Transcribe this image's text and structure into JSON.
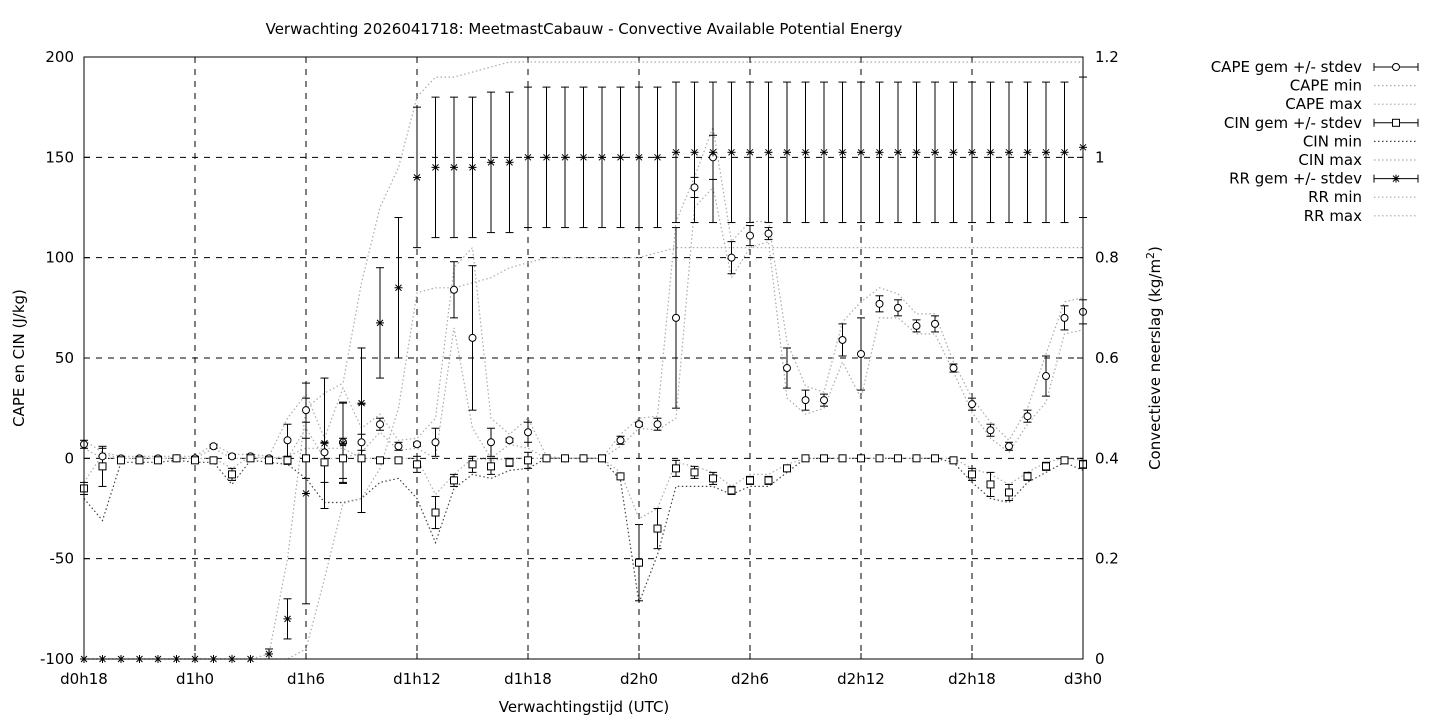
{
  "chart_data": {
    "type": "line",
    "title": "Verwachting 2026041718: MeetmastCabauw - Convective Available Potential Energy",
    "xlabel": "Verwachtingstijd (UTC)",
    "ylabel": "CAPE en CIN (J/kg)",
    "y2label": "Convectieve neerslag (kg/m",
    "y2label_sup": "2",
    "y2label_end": ")",
    "xlim": [
      18,
      72
    ],
    "ylim": [
      -100,
      200
    ],
    "y2lim": [
      0,
      1.2
    ],
    "x_ticks": [
      {
        "x": 18,
        "label": "d0h18"
      },
      {
        "x": 24,
        "label": "d1h0"
      },
      {
        "x": 30,
        "label": "d1h6"
      },
      {
        "x": 36,
        "label": "d1h12"
      },
      {
        "x": 42,
        "label": "d1h18"
      },
      {
        "x": 48,
        "label": "d2h0"
      },
      {
        "x": 54,
        "label": "d2h6"
      },
      {
        "x": 60,
        "label": "d2h12"
      },
      {
        "x": 66,
        "label": "d2h18"
      },
      {
        "x": 72,
        "label": "d3h0"
      }
    ],
    "y_ticks": [
      "-100",
      "-50",
      "0",
      "50",
      "100",
      "150",
      "200"
    ],
    "y2_ticks": [
      "0",
      "0.2",
      "0.4",
      "0.6",
      "0.8",
      "1",
      "1.2"
    ],
    "grid": true,
    "legend_position": "outside-top-right",
    "legend": [
      {
        "label": "CAPE gem +/- stdev",
        "style": "errorbar-circle"
      },
      {
        "label": "CAPE min",
        "style": "dotted-light"
      },
      {
        "label": "CAPE max",
        "style": "dotted-light"
      },
      {
        "label": "CIN gem +/- stdev",
        "style": "errorbar-square"
      },
      {
        "label": "CIN min",
        "style": "dotted-dark"
      },
      {
        "label": "CIN max",
        "style": "dotted-light"
      },
      {
        "label": "RR gem +/- stdev",
        "style": "errorbar-star"
      },
      {
        "label": "RR min",
        "style": "dotted-light"
      },
      {
        "label": "RR max",
        "style": "dotted-light"
      }
    ],
    "series": [
      {
        "name": "CAPE gem +/- stdev",
        "axis": "y1",
        "x": [
          18,
          19,
          20,
          21,
          22,
          23,
          24,
          25,
          26,
          27,
          28,
          29,
          30,
          31,
          32,
          33,
          34,
          35,
          36,
          37,
          38,
          39,
          40,
          41,
          42,
          43,
          44,
          45,
          46,
          47,
          48,
          49,
          50,
          51,
          52,
          53,
          54,
          55,
          56,
          57,
          58,
          59,
          60,
          61,
          62,
          63,
          64,
          65,
          66,
          67,
          68,
          69,
          70,
          71,
          72
        ],
        "mean": [
          7,
          1,
          0,
          0,
          0,
          0,
          0,
          6,
          1,
          1,
          0,
          9,
          24,
          3,
          8,
          8,
          17,
          6,
          7,
          8,
          84,
          60,
          8,
          9,
          13,
          0,
          0,
          0,
          0,
          9,
          17,
          17,
          70,
          135,
          150,
          100,
          111,
          112,
          45,
          29,
          29,
          59,
          52,
          77,
          75,
          66,
          67,
          45,
          27,
          14,
          6,
          21,
          41,
          70,
          73
        ],
        "stdev": [
          2,
          4,
          1,
          1,
          1,
          1,
          1,
          1,
          1,
          1,
          1,
          8,
          6,
          5,
          20,
          4,
          3,
          2,
          1,
          7,
          14,
          36,
          7,
          1,
          5,
          1,
          0,
          0,
          0,
          2,
          1,
          3,
          45,
          5,
          11,
          8,
          5,
          3,
          10,
          5,
          3,
          8,
          18,
          4,
          4,
          3,
          4,
          2,
          3,
          3,
          2,
          3,
          10,
          6,
          6
        ]
      },
      {
        "name": "CIN gem +/- stdev",
        "axis": "y1",
        "x": [
          18,
          19,
          20,
          21,
          22,
          23,
          24,
          25,
          26,
          27,
          28,
          29,
          30,
          31,
          32,
          33,
          34,
          35,
          36,
          37,
          38,
          39,
          40,
          41,
          42,
          43,
          44,
          45,
          46,
          47,
          48,
          49,
          50,
          51,
          52,
          53,
          54,
          55,
          56,
          57,
          58,
          59,
          60,
          61,
          62,
          63,
          64,
          65,
          66,
          67,
          68,
          69,
          70,
          71,
          72
        ],
        "mean": [
          -15,
          -4,
          -1,
          -1,
          -1,
          0,
          -1,
          -1,
          -8,
          0,
          -1,
          -1,
          0,
          -2,
          0,
          0,
          -1,
          -1,
          -3,
          -27,
          -11,
          -3,
          -4,
          -2,
          -1,
          0,
          0,
          0,
          0,
          -9,
          -52,
          -35,
          -5,
          -7,
          -10,
          -16,
          -11,
          -11,
          -5,
          0,
          0,
          0,
          0,
          0,
          0,
          0,
          0,
          -1,
          -8,
          -13,
          -17,
          -9,
          -4,
          -1,
          -3
        ],
        "stdev": [
          3,
          10,
          1,
          1,
          1,
          1,
          1,
          1,
          3,
          1,
          1,
          2,
          10,
          10,
          10,
          27,
          1,
          1,
          4,
          8,
          3,
          4,
          4,
          2,
          4,
          1,
          0,
          0,
          0,
          1,
          19,
          10,
          4,
          3,
          3,
          2,
          2,
          2,
          1,
          0,
          0,
          0,
          0,
          0,
          0,
          0,
          0,
          1,
          3,
          6,
          4,
          2,
          2,
          1,
          2
        ]
      },
      {
        "name": "RR gem +/- stdev",
        "axis": "y2",
        "x": [
          18,
          19,
          20,
          21,
          22,
          23,
          24,
          25,
          26,
          27,
          28,
          29,
          30,
          31,
          32,
          33,
          34,
          35,
          36,
          37,
          38,
          39,
          40,
          41,
          42,
          43,
          44,
          45,
          46,
          47,
          48,
          49,
          50,
          51,
          52,
          53,
          54,
          55,
          56,
          57,
          58,
          59,
          60,
          61,
          62,
          63,
          64,
          65,
          66,
          67,
          68,
          69,
          70,
          71,
          72
        ],
        "mean": [
          0,
          0,
          0,
          0,
          0,
          0,
          0,
          0,
          0,
          0,
          0.01,
          0.08,
          0.33,
          0.43,
          0.43,
          0.51,
          0.67,
          0.74,
          0.96,
          0.98,
          0.98,
          0.98,
          0.99,
          0.99,
          1,
          1,
          1,
          1,
          1,
          1,
          1,
          1,
          1.01,
          1.01,
          1.01,
          1.01,
          1.01,
          1.01,
          1.01,
          1.01,
          1.01,
          1.01,
          1.01,
          1.01,
          1.01,
          1.01,
          1.01,
          1.01,
          1.01,
          1.01,
          1.01,
          1.01,
          1.01,
          1.01,
          1.02
        ],
        "stdev": [
          0,
          0,
          0,
          0,
          0,
          0,
          0,
          0,
          0,
          0,
          0.01,
          0.04,
          0.22,
          0.13,
          0.08,
          0.11,
          0.11,
          0.14,
          0.14,
          0.14,
          0.14,
          0.14,
          0.14,
          0.14,
          0.14,
          0.14,
          0.14,
          0.14,
          0.14,
          0.14,
          0.14,
          0.14,
          0.14,
          0.14,
          0.14,
          0.14,
          0.14,
          0.14,
          0.14,
          0.14,
          0.14,
          0.14,
          0.14,
          0.14,
          0.14,
          0.14,
          0.14,
          0.14,
          0.14,
          0.14,
          0.14,
          0.14,
          0.14,
          0.14,
          0.14
        ]
      },
      {
        "name": "CAPE min",
        "axis": "y1",
        "x": [
          18,
          19,
          20,
          21,
          22,
          23,
          24,
          25,
          26,
          27,
          28,
          29,
          30,
          31,
          32,
          33,
          34,
          35,
          36,
          37,
          38,
          39,
          40,
          41,
          42,
          43,
          44,
          45,
          46,
          47,
          48,
          49,
          50,
          51,
          52,
          53,
          54,
          55,
          56,
          57,
          58,
          59,
          60,
          61,
          62,
          63,
          64,
          65,
          66,
          67,
          68,
          69,
          70,
          71,
          72
        ],
        "values": [
          5,
          0,
          0,
          0,
          0,
          0,
          0,
          5,
          0,
          0,
          0,
          0,
          15,
          0,
          0,
          3,
          13,
          4,
          5,
          0,
          65,
          15,
          0,
          7,
          5,
          0,
          0,
          0,
          0,
          6,
          15,
          14,
          20,
          125,
          135,
          90,
          105,
          108,
          30,
          22,
          25,
          48,
          30,
          70,
          70,
          62,
          62,
          43,
          23,
          10,
          3,
          17,
          28,
          62,
          64
        ]
      },
      {
        "name": "CAPE max",
        "axis": "y1",
        "x": [
          18,
          19,
          20,
          21,
          22,
          23,
          24,
          25,
          26,
          27,
          28,
          29,
          30,
          31,
          32,
          33,
          34,
          35,
          36,
          37,
          38,
          39,
          40,
          41,
          42,
          43,
          44,
          45,
          46,
          47,
          48,
          49,
          50,
          51,
          52,
          53,
          54,
          55,
          56,
          57,
          58,
          59,
          60,
          61,
          62,
          63,
          64,
          65,
          66,
          67,
          68,
          69,
          70,
          71,
          72
        ],
        "values": [
          9,
          3,
          1,
          1,
          1,
          1,
          1,
          7,
          2,
          2,
          1,
          20,
          32,
          10,
          35,
          15,
          22,
          9,
          10,
          20,
          95,
          105,
          20,
          12,
          20,
          1,
          0,
          0,
          0,
          12,
          20,
          21,
          118,
          140,
          165,
          108,
          118,
          118,
          58,
          36,
          33,
          68,
          78,
          85,
          82,
          72,
          72,
          48,
          30,
          18,
          9,
          25,
          52,
          78,
          80
        ]
      },
      {
        "name": "CIN min",
        "axis": "y1",
        "x": [
          18,
          19,
          20,
          21,
          22,
          23,
          24,
          25,
          26,
          27,
          28,
          29,
          30,
          31,
          32,
          33,
          34,
          35,
          36,
          37,
          38,
          39,
          40,
          41,
          42,
          43,
          44,
          45,
          46,
          47,
          48,
          49,
          50,
          51,
          52,
          53,
          54,
          55,
          56,
          57,
          58,
          59,
          60,
          61,
          62,
          63,
          64,
          65,
          66,
          67,
          68,
          69,
          70,
          71,
          72
        ],
        "values": [
          -20,
          -31,
          -2,
          -2,
          -2,
          -1,
          -2,
          -2,
          -13,
          -1,
          -2,
          -3,
          -10,
          -22,
          -22,
          -20,
          -12,
          -10,
          -20,
          -42,
          -15,
          -8,
          -10,
          -6,
          -5,
          0,
          0,
          0,
          0,
          -11,
          -72,
          -48,
          -14,
          -14,
          -14,
          -18,
          -14,
          -14,
          -7,
          0,
          0,
          0,
          0,
          0,
          0,
          0,
          0,
          -2,
          -12,
          -20,
          -22,
          -12,
          -7,
          -2,
          -6
        ]
      },
      {
        "name": "CIN max",
        "axis": "y1",
        "x": [
          18,
          19,
          20,
          21,
          22,
          23,
          24,
          25,
          26,
          27,
          28,
          29,
          30,
          31,
          32,
          33,
          34,
          35,
          36,
          37,
          38,
          39,
          40,
          41,
          42,
          43,
          44,
          45,
          46,
          47,
          48,
          49,
          50,
          51,
          52,
          53,
          54,
          55,
          56,
          57,
          58,
          59,
          60,
          61,
          62,
          63,
          64,
          65,
          66,
          67,
          68,
          69,
          70,
          71,
          72
        ],
        "values": [
          -12,
          2,
          0,
          0,
          0,
          0,
          0,
          0,
          -5,
          1,
          0,
          1,
          5,
          5,
          5,
          0,
          0,
          0,
          0,
          -18,
          -8,
          0,
          -1,
          0,
          0,
          0,
          0,
          0,
          0,
          -7,
          -30,
          -25,
          -2,
          -4,
          -7,
          -14,
          -8,
          -8,
          -3,
          0,
          0,
          0,
          0,
          0,
          0,
          0,
          0,
          0,
          -5,
          -8,
          -13,
          -7,
          -2,
          0,
          -1
        ]
      },
      {
        "name": "RR min",
        "axis": "y2",
        "x": [
          18,
          19,
          20,
          21,
          22,
          23,
          24,
          25,
          26,
          27,
          28,
          29,
          30,
          31,
          32,
          33,
          34,
          35,
          36,
          37,
          38,
          39,
          40,
          41,
          42,
          43,
          44,
          45,
          46,
          47,
          48,
          49,
          50,
          51,
          52,
          53,
          54,
          55,
          56,
          57,
          58,
          59,
          60,
          61,
          62,
          63,
          64,
          65,
          66,
          67,
          68,
          69,
          70,
          71,
          72
        ],
        "values": [
          0,
          0,
          0,
          0,
          0,
          0,
          0,
          0,
          0,
          0,
          0,
          0,
          0.02,
          0.16,
          0.31,
          0.32,
          0.38,
          0.5,
          0.73,
          0.74,
          0.74,
          0.75,
          0.76,
          0.78,
          0.79,
          0.8,
          0.8,
          0.8,
          0.8,
          0.8,
          0.8,
          0.81,
          0.82,
          0.82,
          0.82,
          0.82,
          0.82,
          0.82,
          0.82,
          0.82,
          0.82,
          0.82,
          0.82,
          0.82,
          0.82,
          0.82,
          0.82,
          0.82,
          0.82,
          0.82,
          0.82,
          0.82,
          0.82,
          0.82,
          0.82
        ]
      },
      {
        "name": "RR max",
        "axis": "y2",
        "x": [
          18,
          19,
          20,
          21,
          22,
          23,
          24,
          25,
          26,
          27,
          28,
          29,
          30,
          31,
          32,
          33,
          34,
          35,
          36,
          37,
          38,
          39,
          40,
          41,
          42,
          43,
          44,
          45,
          46,
          47,
          48,
          49,
          50,
          51,
          52,
          53,
          54,
          55,
          56,
          57,
          58,
          59,
          60,
          61,
          62,
          63,
          64,
          65,
          66,
          67,
          68,
          69,
          70,
          71,
          72
        ],
        "values": [
          0,
          0,
          0,
          0,
          0,
          0,
          0,
          0,
          0,
          0,
          0.01,
          0.2,
          0.5,
          0.53,
          0.55,
          0.75,
          0.9,
          0.98,
          1.12,
          1.16,
          1.16,
          1.17,
          1.18,
          1.19,
          1.19,
          1.19,
          1.19,
          1.19,
          1.19,
          1.19,
          1.19,
          1.19,
          1.19,
          1.19,
          1.19,
          1.19,
          1.19,
          1.19,
          1.19,
          1.19,
          1.19,
          1.19,
          1.19,
          1.19,
          1.19,
          1.19,
          1.19,
          1.19,
          1.19,
          1.19,
          1.19,
          1.19,
          1.19,
          1.19,
          1.19
        ]
      }
    ]
  }
}
